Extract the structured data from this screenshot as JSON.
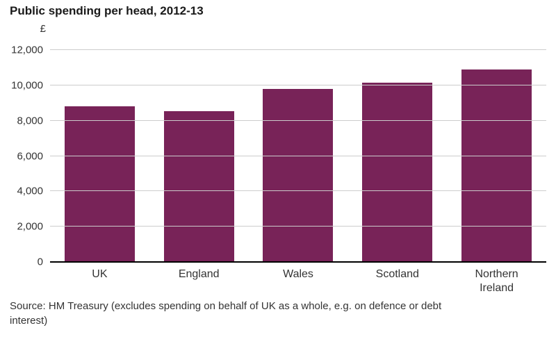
{
  "title": "Public spending per head, 2012-13",
  "y_axis_unit": "£",
  "source": "Source: HM Treasury (excludes spending on behalf of UK as a whole, e.g. on defence or debt interest)",
  "chart_data": {
    "type": "bar",
    "title": "Public spending per head, 2012-13",
    "categories": [
      "UK",
      "England",
      "Wales",
      "Scotland",
      "Northern Ireland"
    ],
    "values": [
      8800,
      8550,
      9800,
      10150,
      10900
    ],
    "xlabel": "",
    "ylabel": "£",
    "ylim": [
      0,
      12000
    ],
    "yticks": [
      0,
      2000,
      4000,
      6000,
      8000,
      10000,
      12000
    ],
    "grid": true,
    "legend": false,
    "bar_color": "#782358"
  }
}
